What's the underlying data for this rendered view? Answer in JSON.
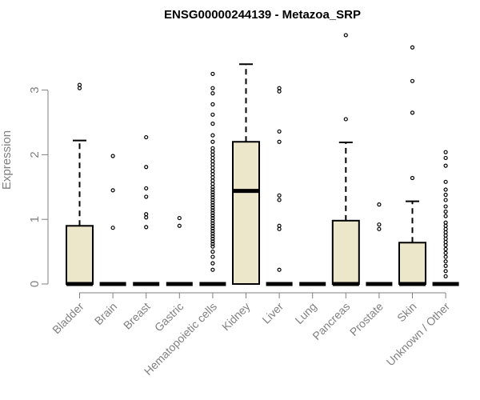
{
  "chart_data": {
    "type": "boxplot",
    "title": "ENSG00000244139 - Metazoa_SRP",
    "ylabel": "Expression",
    "xlabel": "",
    "ylim": [
      0,
      3.9
    ],
    "yticks": [
      0,
      1,
      2,
      3
    ],
    "categories": [
      "Bladder",
      "Brain",
      "Breast",
      "Gastric",
      "Hematopoietic cells",
      "Kidney",
      "Liver",
      "Lung",
      "Pancreas",
      "Prostate",
      "Skin",
      "Unknown / Other"
    ],
    "box_fill": "#ece6cb",
    "boxes": [
      {
        "q1": 0,
        "median": 0,
        "q3": 0.9,
        "wlo": 0,
        "whi": 2.22,
        "outliers": [
          3.03,
          3.08
        ]
      },
      {
        "q1": 0,
        "median": 0,
        "q3": 0,
        "wlo": 0,
        "whi": 0,
        "outliers": [
          0.87,
          1.45,
          1.98
        ]
      },
      {
        "q1": 0,
        "median": 0,
        "q3": 0,
        "wlo": 0,
        "whi": 0,
        "outliers": [
          0.88,
          1.03,
          1.08,
          1.35,
          1.48,
          1.81,
          2.27
        ]
      },
      {
        "q1": 0,
        "median": 0,
        "q3": 0,
        "wlo": 0,
        "whi": 0,
        "outliers": [
          0.9,
          1.02
        ]
      },
      {
        "q1": 0,
        "median": 0,
        "q3": 0,
        "wlo": 0,
        "whi": 0,
        "outliers": [
          0.22,
          0.32,
          0.42,
          0.5,
          0.58,
          0.62,
          0.66,
          0.7,
          0.74,
          0.78,
          0.82,
          0.86,
          0.9,
          0.94,
          0.98,
          1.02,
          1.06,
          1.1,
          1.14,
          1.18,
          1.22,
          1.26,
          1.3,
          1.34,
          1.38,
          1.42,
          1.46,
          1.5,
          1.55,
          1.6,
          1.65,
          1.7,
          1.75,
          1.8,
          1.85,
          1.9,
          1.95,
          2.0,
          2.05,
          2.1,
          2.2,
          2.3,
          2.48,
          2.62,
          2.78,
          2.95,
          3.03,
          3.25
        ]
      },
      {
        "q1": 0,
        "median": 1.44,
        "q3": 2.2,
        "wlo": 0,
        "whi": 3.4,
        "outliers": []
      },
      {
        "q1": 0,
        "median": 0,
        "q3": 0,
        "wlo": 0,
        "whi": 0,
        "outliers": [
          0.22,
          0.85,
          0.9,
          1.3,
          1.37,
          2.2,
          2.36,
          2.98,
          3.03
        ]
      },
      {
        "q1": 0,
        "median": 0,
        "q3": 0,
        "wlo": 0,
        "whi": 0,
        "outliers": []
      },
      {
        "q1": 0,
        "median": 0,
        "q3": 0.98,
        "wlo": 0,
        "whi": 2.19,
        "outliers": [
          2.55,
          3.85
        ]
      },
      {
        "q1": 0,
        "median": 0,
        "q3": 0,
        "wlo": 0,
        "whi": 0,
        "outliers": [
          0.85,
          0.92,
          1.23
        ]
      },
      {
        "q1": 0,
        "median": 0,
        "q3": 0.64,
        "wlo": 0,
        "whi": 1.28,
        "outliers": [
          1.64,
          2.65,
          3.14,
          3.66
        ]
      },
      {
        "q1": 0,
        "median": 0,
        "q3": 0,
        "wlo": 0,
        "whi": 0,
        "outliers": [
          0.12,
          0.2,
          0.28,
          0.35,
          0.42,
          0.48,
          0.54,
          0.6,
          0.65,
          0.7,
          0.75,
          0.8,
          0.85,
          0.9,
          0.95,
          1.05,
          1.12,
          1.2,
          1.3,
          1.38,
          1.46,
          1.58,
          1.83,
          1.95,
          2.04
        ]
      }
    ]
  }
}
